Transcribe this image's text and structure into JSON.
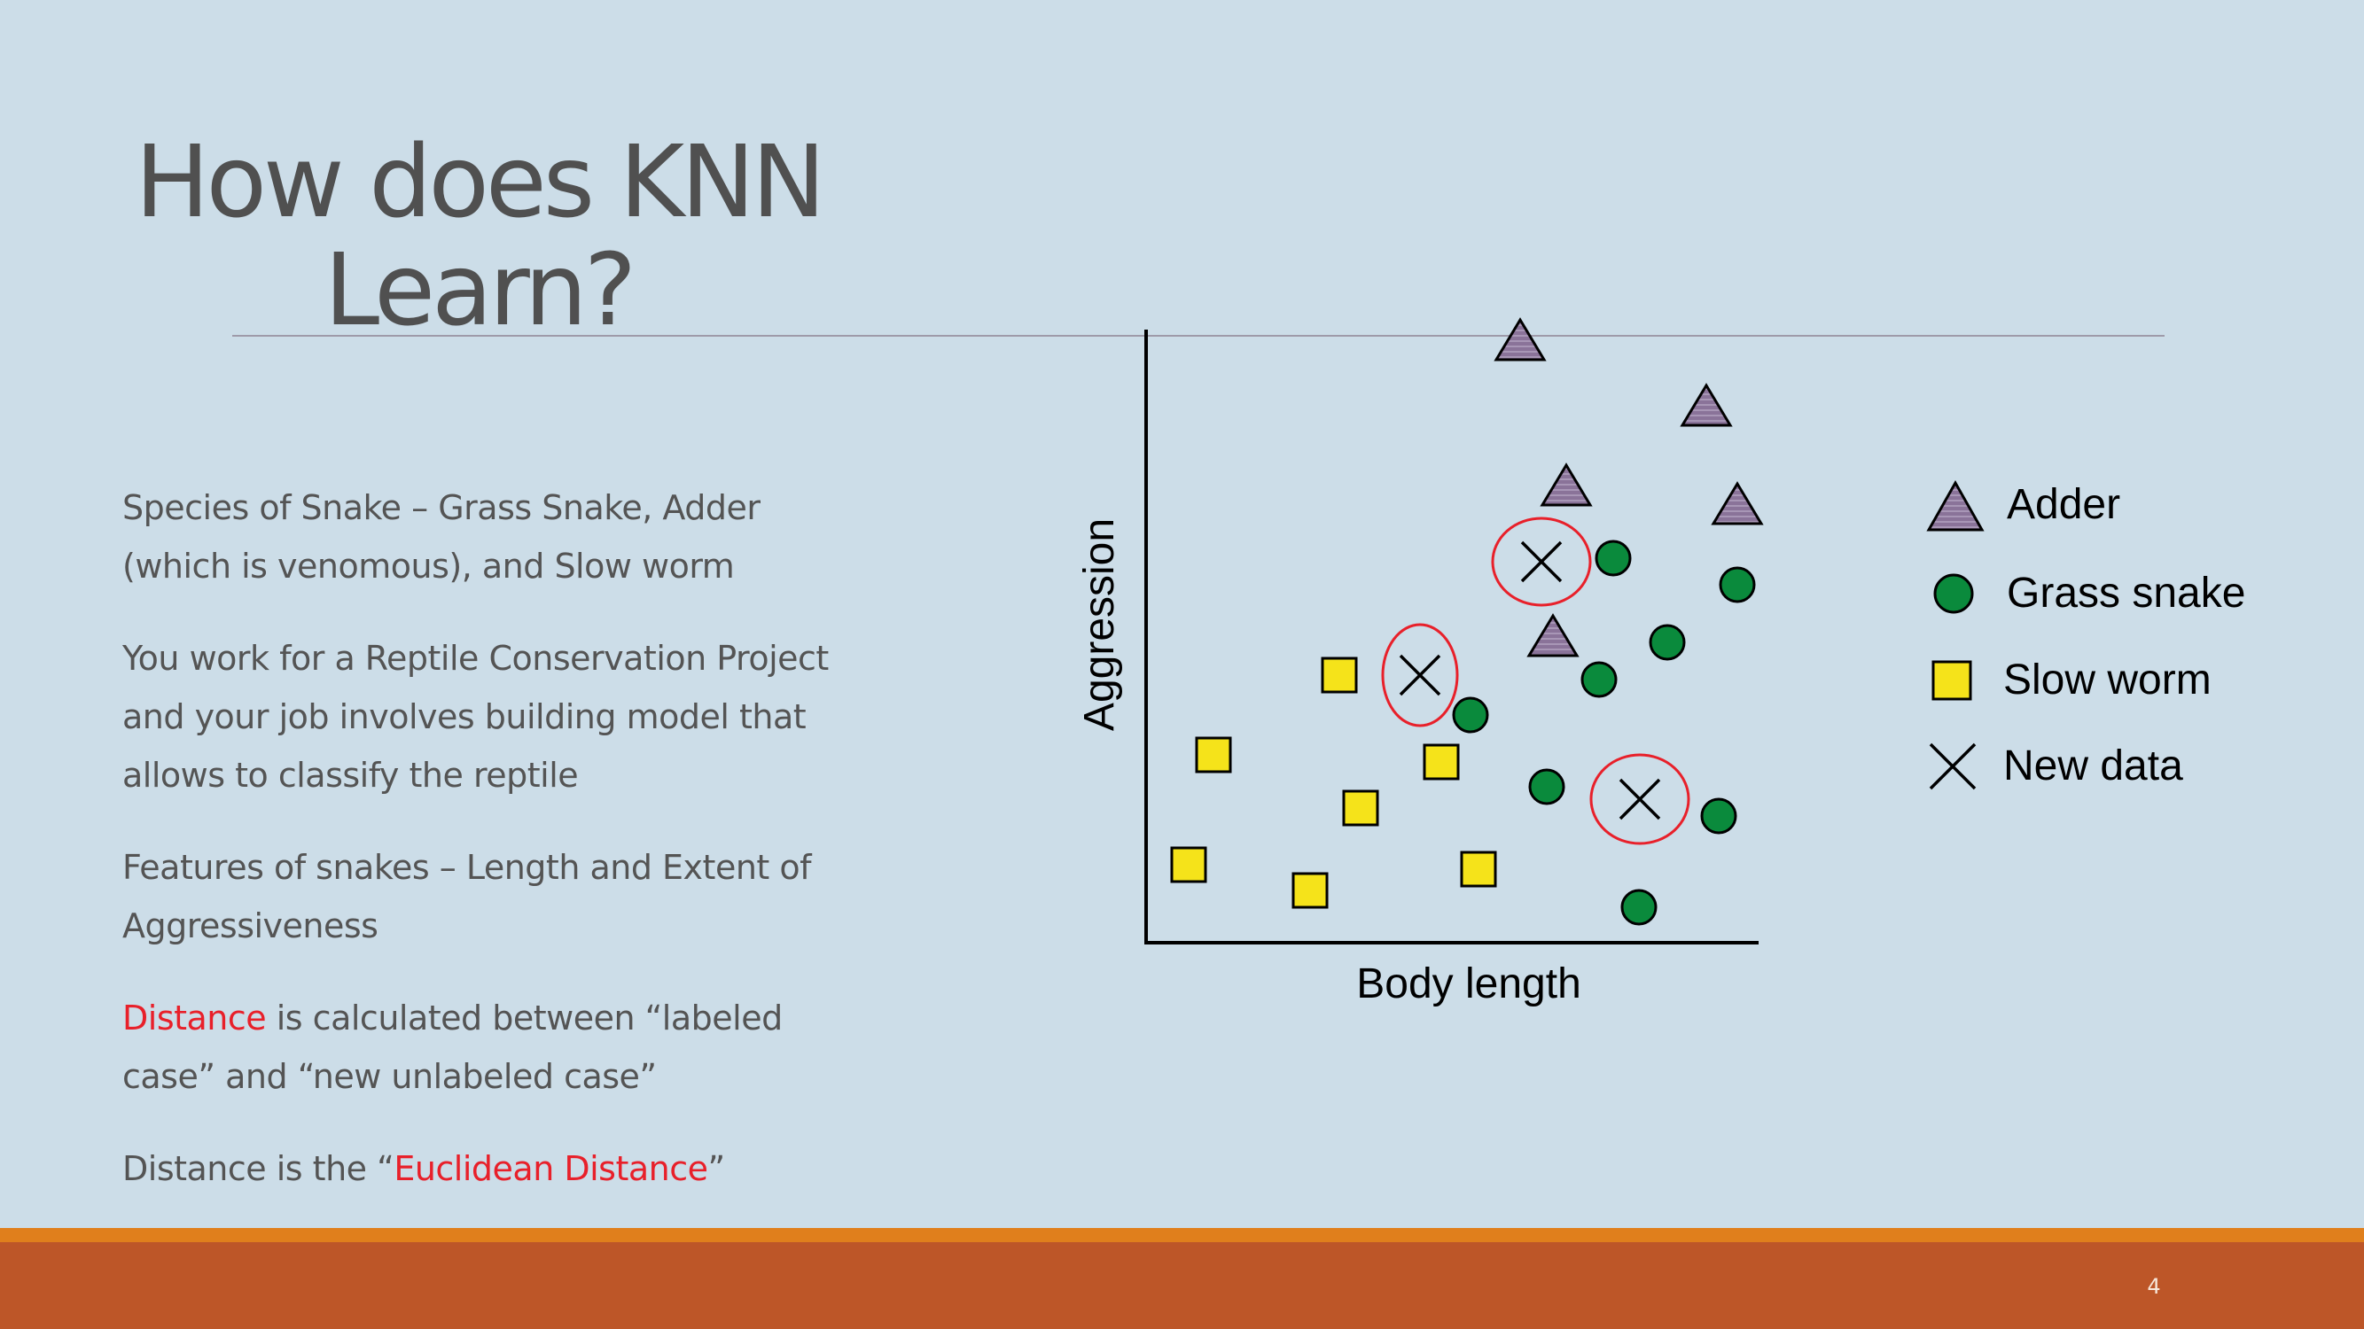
{
  "slide": {
    "title_line1": "How does KNN",
    "title_line2": "Learn?",
    "page_number": "4"
  },
  "bullets": {
    "b1": "Species of Snake – Grass Snake, Adder (which is venomous), and Slow worm",
    "b2": "You work for a Reptile Conservation Project and your job involves building model that allows to classify the reptile",
    "b3": "Features of snakes – Length and Extent of Aggressiveness",
    "b4_highlight": "Distance",
    "b4_rest": " is calculated between “labeled case” and “new unlabeled case”",
    "b5_start": "Distance is the “",
    "b5_highlight": "Euclidean Distance",
    "b5_end": "”"
  },
  "diagram": {
    "xlabel": "Body length",
    "ylabel": "Aggression",
    "legend": {
      "adder": "Adder",
      "grass_snake": "Grass snake",
      "slow_worm": "Slow worm",
      "new_data": "New data"
    }
  },
  "colors": {
    "background": "#ccdde8",
    "adder": "#8a7399",
    "grass_snake": "#0a8a3c",
    "slow_worm": "#f5e31a",
    "circle": "#e8202a",
    "highlight_text": "#e8202a",
    "footer_bar": "#bd5628",
    "footer_stripe": "#e07f1c"
  }
}
